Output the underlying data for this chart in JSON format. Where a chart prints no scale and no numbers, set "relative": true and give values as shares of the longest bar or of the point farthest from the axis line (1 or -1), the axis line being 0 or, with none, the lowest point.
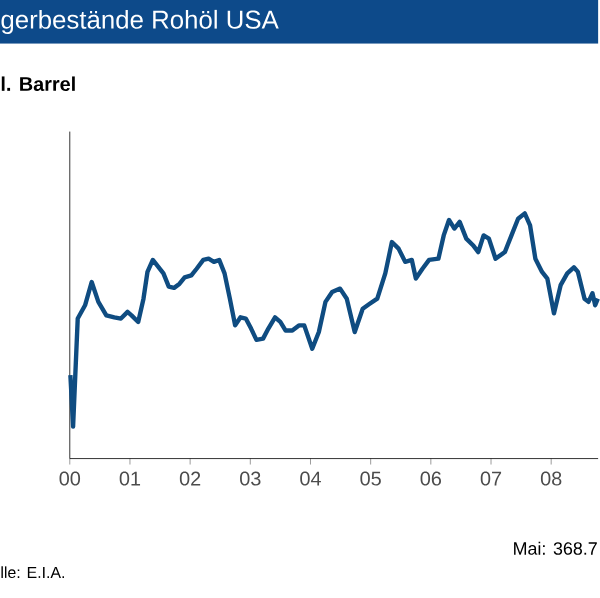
{
  "chart_data": {
    "type": "line",
    "title": "gerbestände Rohöl USA",
    "subtitle": "l. Barrel",
    "relative": true,
    "annotations": [
      "Mai: 368.7",
      "lle: E.I.A."
    ],
    "xlim": [
      2000,
      2008.78
    ],
    "xticks": [
      {
        "value": 2000,
        "label": "00"
      },
      {
        "value": 2001,
        "label": "01"
      },
      {
        "value": 2002,
        "label": "02"
      },
      {
        "value": 2003,
        "label": "03"
      },
      {
        "value": 2004,
        "label": "04"
      },
      {
        "value": 2005,
        "label": "05"
      },
      {
        "value": 2006,
        "label": "06"
      },
      {
        "value": 2007,
        "label": "07"
      },
      {
        "value": 2008,
        "label": "08"
      }
    ],
    "series": [
      {
        "color": "#0f4c81",
        "x": [
          2000.01,
          2000.055,
          2000.132,
          2000.254,
          2000.364,
          2000.475,
          2000.607,
          2000.74,
          2000.85,
          2000.96,
          2001.026,
          2001.137,
          2001.225,
          2001.291,
          2001.38,
          2001.468,
          2001.556,
          2001.645,
          2001.733,
          2001.821,
          2001.909,
          2002.02,
          2002.108,
          2002.219,
          2002.307,
          2002.395,
          2002.483,
          2002.572,
          2002.66,
          2002.748,
          2002.837,
          2002.925,
          2003.013,
          2003.102,
          2003.212,
          2003.3,
          2003.411,
          2003.499,
          2003.587,
          2003.698,
          2003.808,
          2003.896,
          2004.029,
          2004.139,
          2004.249,
          2004.36,
          2004.492,
          2004.603,
          2004.735,
          2004.868,
          2004.978,
          2005.11,
          2005.243,
          2005.353,
          2005.464,
          2005.574,
          2005.684,
          2005.751,
          2005.861,
          2005.971,
          2006.126,
          2006.214,
          2006.302,
          2006.391,
          2006.479,
          2006.589,
          2006.7,
          2006.788,
          2006.877,
          2006.965,
          2007.075,
          2007.23,
          2007.34,
          2007.45,
          2007.561,
          2007.649,
          2007.737,
          2007.848,
          2007.936,
          2008.046,
          2008.157,
          2008.267,
          2008.377,
          2008.444,
          2008.554,
          2008.62,
          2008.686,
          2008.731,
          2008.775
        ],
        "values": [
          0.34,
          0.13,
          0.571,
          0.625,
          0.72,
          0.639,
          0.584,
          0.576,
          0.571,
          0.598,
          0.584,
          0.557,
          0.652,
          0.761,
          0.81,
          0.783,
          0.755,
          0.701,
          0.696,
          0.712,
          0.739,
          0.747,
          0.774,
          0.81,
          0.815,
          0.802,
          0.81,
          0.755,
          0.652,
          0.543,
          0.576,
          0.571,
          0.53,
          0.484,
          0.489,
          0.53,
          0.576,
          0.557,
          0.522,
          0.522,
          0.543,
          0.543,
          0.448,
          0.516,
          0.639,
          0.679,
          0.693,
          0.652,
          0.516,
          0.611,
          0.63,
          0.652,
          0.755,
          0.883,
          0.856,
          0.802,
          0.81,
          0.734,
          0.774,
          0.81,
          0.815,
          0.91,
          0.973,
          0.938,
          0.965,
          0.897,
          0.87,
          0.842,
          0.91,
          0.897,
          0.815,
          0.842,
          0.91,
          0.978,
          1.0,
          0.951,
          0.815,
          0.761,
          0.734,
          0.592,
          0.707,
          0.755,
          0.78,
          0.761,
          0.652,
          0.639,
          0.674,
          0.625,
          0.652
        ]
      }
    ]
  }
}
